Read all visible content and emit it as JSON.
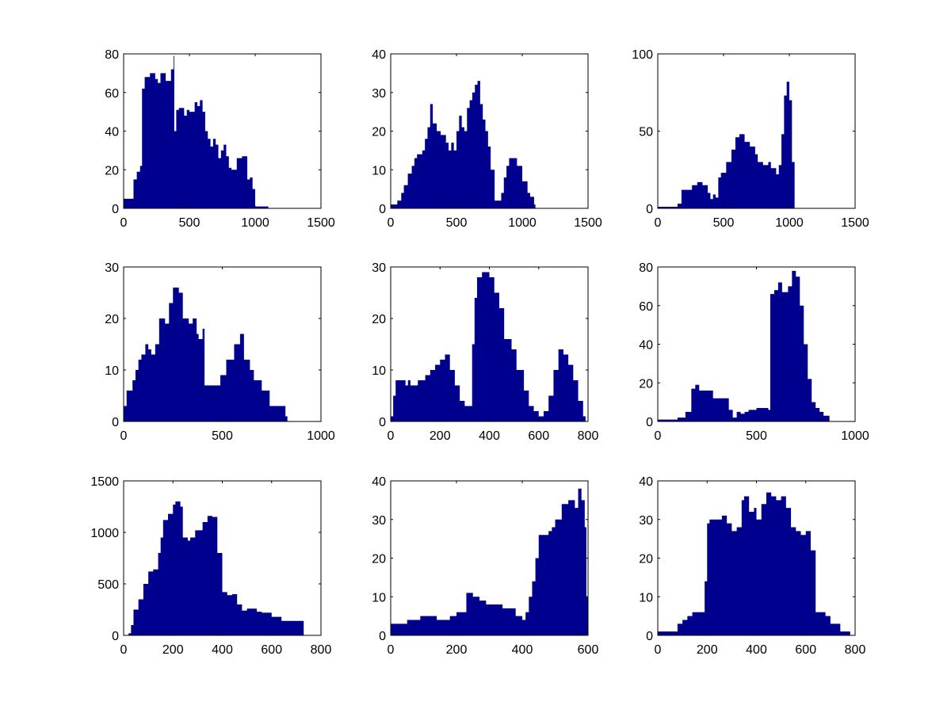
{
  "chart_data": [
    {
      "type": "area",
      "title": "",
      "xlabel": "",
      "ylabel": "",
      "xlim": [
        0,
        1500
      ],
      "ylim": [
        0,
        80
      ],
      "xticks": [
        0,
        500,
        1000,
        1500
      ],
      "yticks": [
        0,
        20,
        40,
        60,
        80
      ],
      "points": [
        [
          0,
          5
        ],
        [
          60,
          5
        ],
        [
          75,
          15
        ],
        [
          100,
          19
        ],
        [
          125,
          22
        ],
        [
          140,
          62
        ],
        [
          160,
          68
        ],
        [
          200,
          70
        ],
        [
          240,
          67
        ],
        [
          260,
          65
        ],
        [
          280,
          70
        ],
        [
          320,
          66
        ],
        [
          360,
          72
        ],
        [
          380,
          79
        ],
        [
          385,
          40
        ],
        [
          400,
          51
        ],
        [
          420,
          52
        ],
        [
          460,
          48
        ],
        [
          480,
          51
        ],
        [
          500,
          50
        ],
        [
          540,
          55
        ],
        [
          560,
          53
        ],
        [
          580,
          56
        ],
        [
          600,
          50
        ],
        [
          620,
          40
        ],
        [
          640,
          36
        ],
        [
          660,
          32
        ],
        [
          680,
          36
        ],
        [
          700,
          33
        ],
        [
          720,
          26
        ],
        [
          740,
          30
        ],
        [
          760,
          33
        ],
        [
          780,
          27
        ],
        [
          800,
          21
        ],
        [
          820,
          20
        ],
        [
          860,
          26
        ],
        [
          900,
          27
        ],
        [
          940,
          15
        ],
        [
          960,
          16
        ],
        [
          980,
          10
        ],
        [
          1000,
          1
        ],
        [
          1100,
          0
        ]
      ]
    },
    {
      "type": "area",
      "title": "",
      "xlabel": "",
      "ylabel": "",
      "xlim": [
        0,
        1500
      ],
      "ylim": [
        0,
        40
      ],
      "xticks": [
        0,
        500,
        1000,
        1500
      ],
      "yticks": [
        0,
        10,
        20,
        30,
        40
      ],
      "points": [
        [
          0,
          1
        ],
        [
          50,
          2
        ],
        [
          80,
          4
        ],
        [
          100,
          6
        ],
        [
          130,
          9
        ],
        [
          160,
          11
        ],
        [
          180,
          13
        ],
        [
          200,
          14
        ],
        [
          240,
          15
        ],
        [
          260,
          18
        ],
        [
          280,
          21
        ],
        [
          300,
          27
        ],
        [
          320,
          22
        ],
        [
          350,
          20
        ],
        [
          380,
          19
        ],
        [
          420,
          17
        ],
        [
          440,
          15
        ],
        [
          460,
          17
        ],
        [
          480,
          15
        ],
        [
          500,
          20
        ],
        [
          520,
          24
        ],
        [
          540,
          21
        ],
        [
          560,
          20
        ],
        [
          580,
          26
        ],
        [
          600,
          28
        ],
        [
          620,
          30
        ],
        [
          640,
          32
        ],
        [
          660,
          33
        ],
        [
          680,
          27
        ],
        [
          700,
          23
        ],
        [
          720,
          20
        ],
        [
          740,
          16
        ],
        [
          760,
          10
        ],
        [
          790,
          2
        ],
        [
          820,
          2
        ],
        [
          840,
          4
        ],
        [
          860,
          8
        ],
        [
          880,
          11
        ],
        [
          900,
          13
        ],
        [
          940,
          13
        ],
        [
          960,
          11
        ],
        [
          1000,
          7
        ],
        [
          1040,
          4
        ],
        [
          1060,
          3
        ],
        [
          1090,
          1
        ],
        [
          1100,
          0
        ]
      ]
    },
    {
      "type": "area",
      "title": "",
      "xlabel": "",
      "ylabel": "",
      "xlim": [
        0,
        1500
      ],
      "ylim": [
        0,
        100
      ],
      "xticks": [
        0,
        500,
        1000,
        1500
      ],
      "yticks": [
        0,
        50,
        100
      ],
      "points": [
        [
          0,
          1
        ],
        [
          120,
          1
        ],
        [
          150,
          3
        ],
        [
          180,
          12
        ],
        [
          220,
          12
        ],
        [
          260,
          15
        ],
        [
          300,
          17
        ],
        [
          340,
          15
        ],
        [
          380,
          10
        ],
        [
          400,
          6
        ],
        [
          420,
          9
        ],
        [
          440,
          7
        ],
        [
          460,
          20
        ],
        [
          480,
          23
        ],
        [
          520,
          30
        ],
        [
          560,
          38
        ],
        [
          590,
          46
        ],
        [
          620,
          48
        ],
        [
          660,
          43
        ],
        [
          700,
          40
        ],
        [
          740,
          35
        ],
        [
          760,
          30
        ],
        [
          800,
          28
        ],
        [
          840,
          30
        ],
        [
          860,
          26
        ],
        [
          900,
          22
        ],
        [
          920,
          28
        ],
        [
          940,
          48
        ],
        [
          960,
          73
        ],
        [
          980,
          82
        ],
        [
          1000,
          70
        ],
        [
          1020,
          30
        ],
        [
          1040,
          0
        ]
      ]
    },
    {
      "type": "area",
      "title": "",
      "xlabel": "",
      "ylabel": "",
      "xlim": [
        0,
        1000
      ],
      "ylim": [
        0,
        30
      ],
      "xticks": [
        0,
        500,
        1000
      ],
      "yticks": [
        0,
        10,
        20,
        30
      ],
      "points": [
        [
          0,
          3
        ],
        [
          15,
          6
        ],
        [
          45,
          8
        ],
        [
          60,
          10
        ],
        [
          75,
          12
        ],
        [
          90,
          13
        ],
        [
          110,
          15
        ],
        [
          125,
          14
        ],
        [
          140,
          13
        ],
        [
          160,
          15
        ],
        [
          180,
          20
        ],
        [
          210,
          19
        ],
        [
          230,
          23
        ],
        [
          250,
          26
        ],
        [
          280,
          25
        ],
        [
          300,
          20
        ],
        [
          330,
          19
        ],
        [
          350,
          20
        ],
        [
          370,
          17
        ],
        [
          380,
          16
        ],
        [
          400,
          18
        ],
        [
          410,
          7
        ],
        [
          450,
          7
        ],
        [
          490,
          9
        ],
        [
          520,
          12
        ],
        [
          560,
          15
        ],
        [
          590,
          17
        ],
        [
          610,
          12
        ],
        [
          640,
          10
        ],
        [
          660,
          8
        ],
        [
          700,
          6
        ],
        [
          740,
          3
        ],
        [
          780,
          3
        ],
        [
          820,
          1
        ],
        [
          830,
          0
        ]
      ]
    },
    {
      "type": "area",
      "title": "",
      "xlabel": "",
      "ylabel": "",
      "xlim": [
        0,
        800
      ],
      "ylim": [
        0,
        30
      ],
      "xticks": [
        0,
        200,
        400,
        600,
        800
      ],
      "yticks": [
        0,
        10,
        20,
        30
      ],
      "points": [
        [
          0,
          1
        ],
        [
          10,
          5
        ],
        [
          20,
          8
        ],
        [
          60,
          7
        ],
        [
          70,
          8
        ],
        [
          80,
          7
        ],
        [
          110,
          8
        ],
        [
          140,
          9
        ],
        [
          160,
          10
        ],
        [
          180,
          11
        ],
        [
          200,
          12
        ],
        [
          220,
          13
        ],
        [
          240,
          10
        ],
        [
          260,
          7
        ],
        [
          280,
          4
        ],
        [
          300,
          3
        ],
        [
          330,
          15
        ],
        [
          340,
          24
        ],
        [
          350,
          28
        ],
        [
          370,
          29
        ],
        [
          400,
          28
        ],
        [
          420,
          25
        ],
        [
          440,
          22
        ],
        [
          460,
          16
        ],
        [
          490,
          14
        ],
        [
          510,
          10
        ],
        [
          540,
          6
        ],
        [
          560,
          3
        ],
        [
          580,
          2
        ],
        [
          600,
          1
        ],
        [
          620,
          2
        ],
        [
          640,
          5
        ],
        [
          660,
          10
        ],
        [
          680,
          14
        ],
        [
          700,
          13
        ],
        [
          720,
          11
        ],
        [
          740,
          8
        ],
        [
          760,
          4
        ],
        [
          780,
          1
        ],
        [
          790,
          0
        ]
      ]
    },
    {
      "type": "area",
      "title": "",
      "xlabel": "",
      "ylabel": "",
      "xlim": [
        0,
        1000
      ],
      "ylim": [
        0,
        80
      ],
      "xticks": [
        0,
        500,
        1000
      ],
      "yticks": [
        0,
        20,
        40,
        60,
        80
      ],
      "points": [
        [
          0,
          1
        ],
        [
          100,
          2
        ],
        [
          140,
          5
        ],
        [
          170,
          17
        ],
        [
          190,
          19
        ],
        [
          210,
          16
        ],
        [
          260,
          16
        ],
        [
          280,
          12
        ],
        [
          340,
          12
        ],
        [
          360,
          6
        ],
        [
          380,
          2
        ],
        [
          400,
          5
        ],
        [
          420,
          4
        ],
        [
          440,
          5
        ],
        [
          460,
          6
        ],
        [
          500,
          7
        ],
        [
          560,
          6
        ],
        [
          570,
          66
        ],
        [
          590,
          68
        ],
        [
          610,
          72
        ],
        [
          630,
          67
        ],
        [
          660,
          70
        ],
        [
          680,
          78
        ],
        [
          700,
          75
        ],
        [
          720,
          60
        ],
        [
          740,
          40
        ],
        [
          760,
          22
        ],
        [
          780,
          10
        ],
        [
          800,
          7
        ],
        [
          820,
          5
        ],
        [
          840,
          3
        ],
        [
          870,
          0
        ]
      ]
    },
    {
      "type": "area",
      "title": "",
      "xlabel": "",
      "ylabel": "",
      "xlim": [
        0,
        800
      ],
      "ylim": [
        0,
        1500
      ],
      "xticks": [
        0,
        200,
        400,
        600,
        800
      ],
      "yticks": [
        0,
        500,
        1000,
        1500
      ],
      "points": [
        [
          0,
          0
        ],
        [
          20,
          20
        ],
        [
          30,
          100
        ],
        [
          40,
          250
        ],
        [
          60,
          350
        ],
        [
          80,
          500
        ],
        [
          100,
          620
        ],
        [
          120,
          640
        ],
        [
          140,
          800
        ],
        [
          150,
          950
        ],
        [
          160,
          1120
        ],
        [
          180,
          1180
        ],
        [
          200,
          1270
        ],
        [
          210,
          1300
        ],
        [
          230,
          1250
        ],
        [
          240,
          950
        ],
        [
          260,
          920
        ],
        [
          270,
          950
        ],
        [
          290,
          1020
        ],
        [
          320,
          1100
        ],
        [
          340,
          1160
        ],
        [
          360,
          1150
        ],
        [
          380,
          800
        ],
        [
          400,
          420
        ],
        [
          420,
          390
        ],
        [
          440,
          400
        ],
        [
          460,
          300
        ],
        [
          480,
          240
        ],
        [
          500,
          260
        ],
        [
          540,
          230
        ],
        [
          560,
          220
        ],
        [
          600,
          180
        ],
        [
          640,
          140
        ],
        [
          720,
          140
        ],
        [
          730,
          0
        ]
      ]
    },
    {
      "type": "area",
      "title": "",
      "xlabel": "",
      "ylabel": "",
      "xlim": [
        0,
        600
      ],
      "ylim": [
        0,
        40
      ],
      "xticks": [
        0,
        200,
        400,
        600
      ],
      "yticks": [
        0,
        10,
        20,
        30,
        40
      ],
      "points": [
        [
          0,
          3
        ],
        [
          40,
          3
        ],
        [
          50,
          4
        ],
        [
          80,
          4
        ],
        [
          90,
          5
        ],
        [
          110,
          5
        ],
        [
          140,
          4
        ],
        [
          160,
          4
        ],
        [
          180,
          5
        ],
        [
          200,
          6
        ],
        [
          220,
          6
        ],
        [
          230,
          11
        ],
        [
          250,
          10
        ],
        [
          270,
          9
        ],
        [
          290,
          8
        ],
        [
          310,
          8
        ],
        [
          340,
          7
        ],
        [
          380,
          5
        ],
        [
          400,
          4
        ],
        [
          410,
          6
        ],
        [
          420,
          10
        ],
        [
          430,
          14
        ],
        [
          440,
          20
        ],
        [
          450,
          26
        ],
        [
          480,
          27
        ],
        [
          490,
          28
        ],
        [
          500,
          30
        ],
        [
          520,
          34
        ],
        [
          540,
          35
        ],
        [
          560,
          33
        ],
        [
          570,
          38
        ],
        [
          580,
          35
        ],
        [
          590,
          28
        ],
        [
          595,
          10
        ],
        [
          600,
          0
        ]
      ]
    },
    {
      "type": "area",
      "title": "",
      "xlabel": "",
      "ylabel": "",
      "xlim": [
        0,
        800
      ],
      "ylim": [
        0,
        40
      ],
      "xticks": [
        0,
        200,
        400,
        600,
        800
      ],
      "yticks": [
        0,
        10,
        20,
        30,
        40
      ],
      "points": [
        [
          0,
          1
        ],
        [
          60,
          1
        ],
        [
          80,
          3
        ],
        [
          100,
          4
        ],
        [
          120,
          5
        ],
        [
          140,
          6
        ],
        [
          180,
          6
        ],
        [
          190,
          14
        ],
        [
          200,
          29
        ],
        [
          210,
          30
        ],
        [
          220,
          30
        ],
        [
          260,
          31
        ],
        [
          280,
          29
        ],
        [
          300,
          27
        ],
        [
          320,
          28
        ],
        [
          340,
          35
        ],
        [
          350,
          36
        ],
        [
          370,
          32
        ],
        [
          390,
          33
        ],
        [
          400,
          30
        ],
        [
          420,
          34
        ],
        [
          440,
          37
        ],
        [
          460,
          36
        ],
        [
          480,
          35
        ],
        [
          500,
          36
        ],
        [
          520,
          33
        ],
        [
          540,
          28
        ],
        [
          560,
          27
        ],
        [
          580,
          26
        ],
        [
          600,
          27
        ],
        [
          620,
          22
        ],
        [
          640,
          6
        ],
        [
          680,
          5
        ],
        [
          700,
          3
        ],
        [
          740,
          1
        ],
        [
          780,
          0
        ]
      ]
    }
  ],
  "colors": {
    "fill": "#00008f",
    "axis": "#000000",
    "background": "#ffffff"
  }
}
